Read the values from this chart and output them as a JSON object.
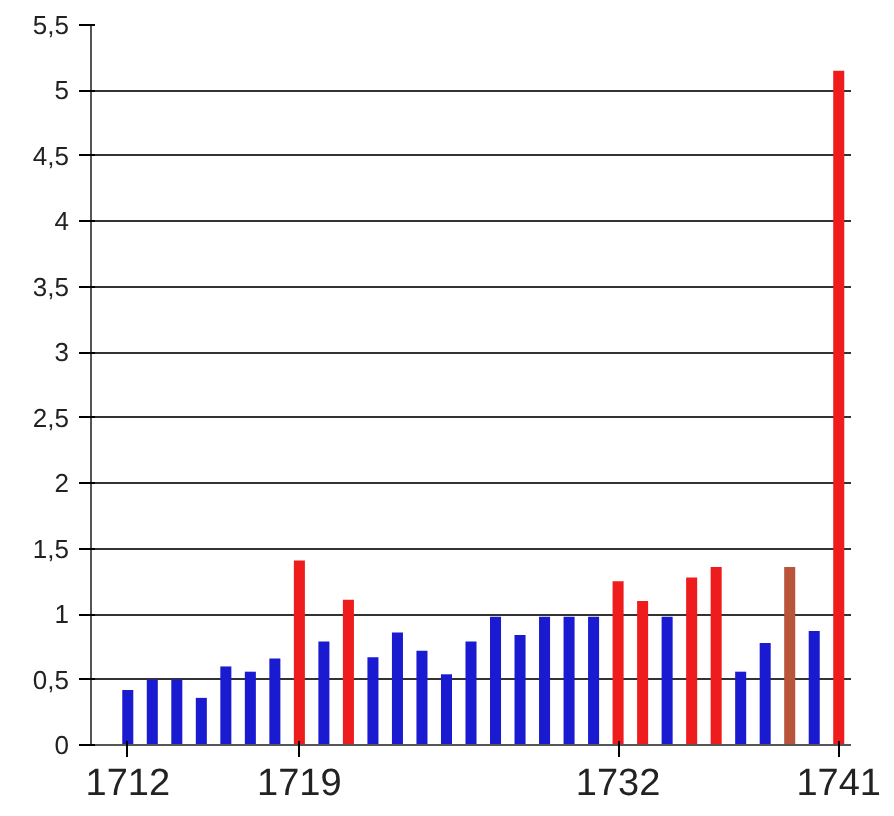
{
  "chart_data": {
    "type": "bar",
    "x": [
      1712,
      1713,
      1714,
      1715,
      1716,
      1717,
      1718,
      1719,
      1720,
      1721,
      1722,
      1723,
      1724,
      1725,
      1726,
      1727,
      1728,
      1729,
      1730,
      1731,
      1732,
      1733,
      1734,
      1735,
      1736,
      1737,
      1738,
      1739,
      1740,
      1741
    ],
    "values": [
      0.42,
      0.5,
      0.5,
      0.36,
      0.6,
      0.56,
      0.66,
      1.41,
      0.79,
      1.11,
      0.67,
      0.86,
      0.72,
      0.54,
      0.79,
      0.98,
      0.84,
      0.98,
      0.98,
      0.98,
      1.25,
      1.1,
      0.98,
      1.28,
      1.36,
      0.56,
      0.78,
      1.36,
      0.87,
      5.15
    ],
    "colors": [
      "#1a1ad0",
      "#1a1ad0",
      "#1a1ad0",
      "#1a1ad0",
      "#1a1ad0",
      "#1a1ad0",
      "#1a1ad0",
      "#ee1c1c",
      "#1a1ad0",
      "#ee1c1c",
      "#1a1ad0",
      "#1a1ad0",
      "#1a1ad0",
      "#1a1ad0",
      "#1a1ad0",
      "#1a1ad0",
      "#1a1ad0",
      "#1a1ad0",
      "#1a1ad0",
      "#1a1ad0",
      "#ee1c1c",
      "#ee1c1c",
      "#1a1ad0",
      "#ee1c1c",
      "#ee1c1c",
      "#1a1ad0",
      "#1a1ad0",
      "#b8553a",
      "#1a1ad0",
      "#ee1c1c"
    ],
    "xlim": [
      1710.5,
      1741.5
    ],
    "xticks": [
      1712,
      1719,
      1732,
      1741
    ],
    "ylim": [
      0,
      5.5
    ],
    "yticks": [
      0,
      {
        "value": 0.5,
        "label": "0,5"
      },
      1,
      {
        "value": 1.5,
        "label": "1,5"
      },
      2,
      {
        "value": 2.5,
        "label": "2,5"
      },
      3,
      {
        "value": 3.5,
        "label": "3,5"
      },
      4,
      {
        "value": 4.5,
        "label": "4,5"
      },
      5,
      {
        "value": 5.5,
        "label": "5,5"
      }
    ],
    "grid": "y"
  }
}
